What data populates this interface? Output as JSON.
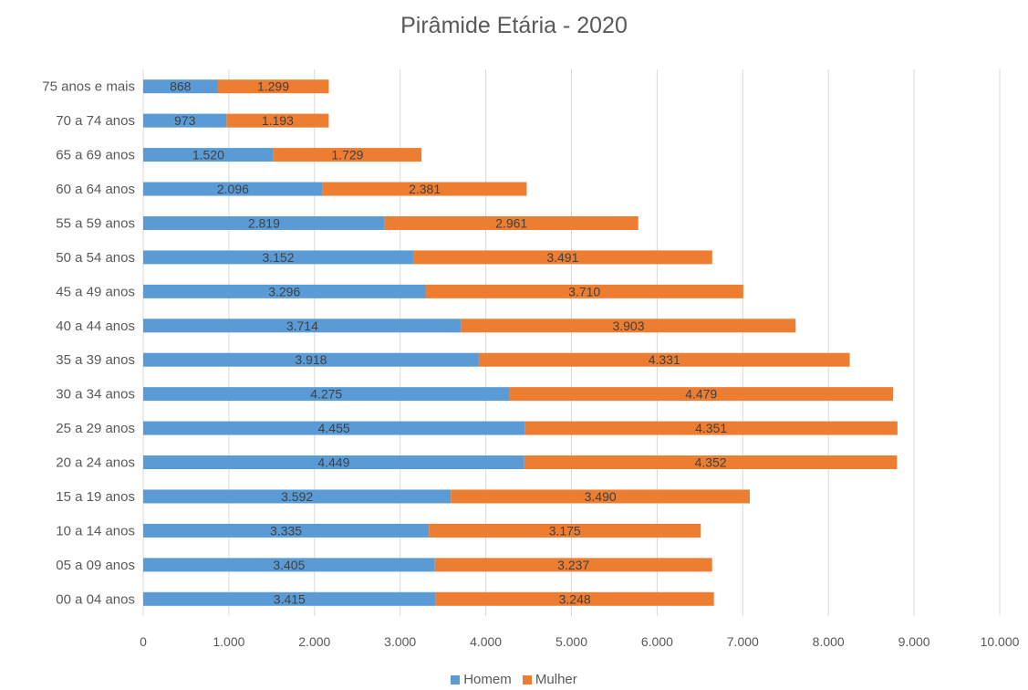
{
  "chart_data": {
    "type": "bar",
    "orientation": "horizontal",
    "stacked": true,
    "title": "Pirâmide Etária - 2020",
    "categories": [
      "75 anos e mais",
      "70 a 74 anos",
      "65 a 69 anos",
      "60 a 64 anos",
      "55 a 59 anos",
      "50 a 54 anos",
      "45 a 49 anos",
      "40 a 44 anos",
      "35 a 39 anos",
      "30 a 34 anos",
      "25 a 29 anos",
      "20 a 24 anos",
      "15 a 19 anos",
      "10 a 14 anos",
      "05 a 09 anos",
      "00 a 04 anos"
    ],
    "series": [
      {
        "name": "Homem",
        "color": "#5B9BD5",
        "values": [
          868,
          973,
          1520,
          2096,
          2819,
          3152,
          3296,
          3714,
          3918,
          4275,
          4455,
          4449,
          3592,
          3335,
          3405,
          3415
        ],
        "labels": [
          "868",
          "973",
          "1.520",
          "2.096",
          "2.819",
          "3.152",
          "3.296",
          "3.714",
          "3.918",
          "4.275",
          "4.455",
          "4.449",
          "3.592",
          "3.335",
          "3.405",
          "3.415"
        ]
      },
      {
        "name": "Mulher",
        "color": "#ED7D31",
        "values": [
          1299,
          1193,
          1729,
          2381,
          2961,
          3491,
          3710,
          3903,
          4331,
          4479,
          4351,
          4352,
          3490,
          3175,
          3237,
          3248
        ],
        "labels": [
          "1.299",
          "1.193",
          "1.729",
          "2.381",
          "2.961",
          "3.491",
          "3.710",
          "3.903",
          "4.331",
          "4.479",
          "4.351",
          "4.352",
          "3.490",
          "3.175",
          "3.237",
          "3.248"
        ]
      }
    ],
    "xlim": [
      0,
      10000
    ],
    "xticks": [
      0,
      1000,
      2000,
      3000,
      4000,
      5000,
      6000,
      7000,
      8000,
      9000,
      10000
    ],
    "xtick_labels": [
      "0",
      "1.000",
      "2.000",
      "3.000",
      "4.000",
      "5.000",
      "6.000",
      "7.000",
      "8.000",
      "9.000",
      "10.000"
    ],
    "grid": "vertical",
    "legend_position": "bottom"
  }
}
